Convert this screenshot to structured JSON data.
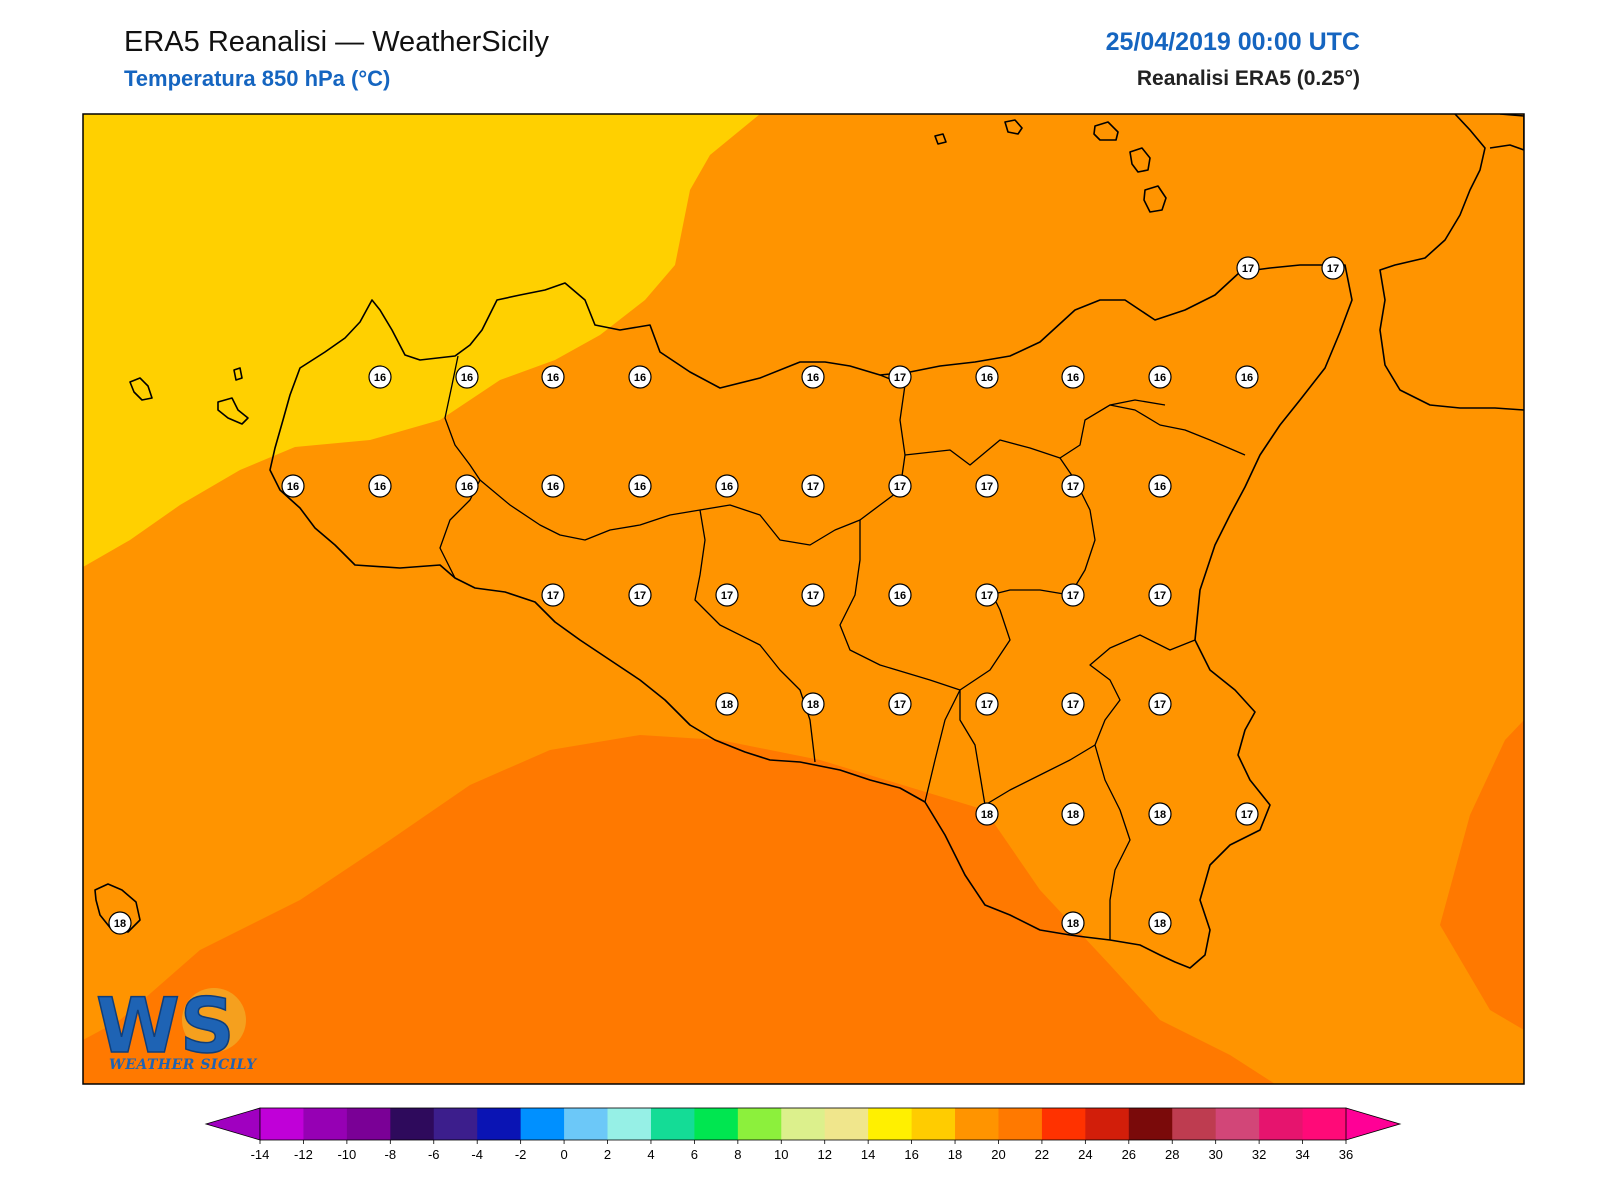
{
  "header": {
    "title": "ERA5 Reanalisi — WeatherSicily",
    "subtitle": "Temperatura 850 hPa (°C)",
    "datetime": "25/04/2019 00:00 UTC",
    "model": "Reanalisi ERA5 (0.25°)"
  },
  "logo": {
    "letters": "WS",
    "text": "WEATHER SICILY"
  },
  "colors": {
    "title_blue": "#1565C0",
    "t14": "#FFD000",
    "t16": "#FF9400",
    "t18": "#FF7900",
    "coast": "#000000",
    "logo_blue": "#1E63B4",
    "logo_orange": "#F5A01E"
  },
  "station_values": [
    {
      "v": "17",
      "id": "s1"
    },
    {
      "v": "17",
      "id": "s2"
    },
    {
      "v": "16",
      "id": "s3"
    },
    {
      "v": "16",
      "id": "s4"
    },
    {
      "v": "16",
      "id": "s5"
    },
    {
      "v": "16",
      "id": "s6"
    },
    {
      "v": "16",
      "id": "s7"
    },
    {
      "v": "17",
      "id": "s8"
    },
    {
      "v": "16",
      "id": "s9"
    },
    {
      "v": "16",
      "id": "s10"
    },
    {
      "v": "16",
      "id": "s11"
    },
    {
      "v": "16",
      "id": "s12"
    },
    {
      "v": "16",
      "id": "s13"
    },
    {
      "v": "16",
      "id": "s14"
    },
    {
      "v": "16",
      "id": "s15"
    },
    {
      "v": "16",
      "id": "s16"
    },
    {
      "v": "16",
      "id": "s17"
    },
    {
      "v": "16",
      "id": "s18"
    },
    {
      "v": "17",
      "id": "s19"
    },
    {
      "v": "17",
      "id": "s20"
    },
    {
      "v": "17",
      "id": "s21"
    },
    {
      "v": "17",
      "id": "s22"
    },
    {
      "v": "16",
      "id": "s23"
    },
    {
      "v": "17",
      "id": "s24"
    },
    {
      "v": "17",
      "id": "s25"
    },
    {
      "v": "17",
      "id": "s26"
    },
    {
      "v": "17",
      "id": "s27"
    },
    {
      "v": "16",
      "id": "s28"
    },
    {
      "v": "17",
      "id": "s29"
    },
    {
      "v": "17",
      "id": "s30"
    },
    {
      "v": "17",
      "id": "s31"
    },
    {
      "v": "18",
      "id": "s32"
    },
    {
      "v": "18",
      "id": "s33"
    },
    {
      "v": "17",
      "id": "s34"
    },
    {
      "v": "17",
      "id": "s35"
    },
    {
      "v": "17",
      "id": "s36"
    },
    {
      "v": "17",
      "id": "s37"
    },
    {
      "v": "18",
      "id": "s38"
    },
    {
      "v": "18",
      "id": "s39"
    },
    {
      "v": "18",
      "id": "s40"
    },
    {
      "v": "17",
      "id": "s41"
    },
    {
      "v": "18",
      "id": "s42"
    },
    {
      "v": "18",
      "id": "s43"
    },
    {
      "v": "18",
      "id": "s44"
    }
  ],
  "legend": {
    "ticks": [
      "-14",
      "-12",
      "-10",
      "-8",
      "-6",
      "-4",
      "-2",
      "0",
      "2",
      "4",
      "6",
      "8",
      "10",
      "12",
      "14",
      "16",
      "18",
      "20",
      "22",
      "24",
      "26",
      "28",
      "30",
      "32",
      "34",
      "36"
    ],
    "colors": [
      "#C000D8",
      "#9600B4",
      "#7A0096",
      "#2E0A5C",
      "#3C1E8C",
      "#0A14B4",
      "#0090FF",
      "#6CC8F8",
      "#96F0E6",
      "#14DC96",
      "#00E650",
      "#8CF03C",
      "#DCF08C",
      "#F0E68C",
      "#FFF000",
      "#FFCC00",
      "#FF9400",
      "#FF7900",
      "#FF3200",
      "#D21E0A",
      "#7A0A0A",
      "#BE3C50",
      "#D24678",
      "#E6146E",
      "#FF0A78"
    ],
    "under_color": "#A000C0",
    "over_color": "#FF0096"
  }
}
